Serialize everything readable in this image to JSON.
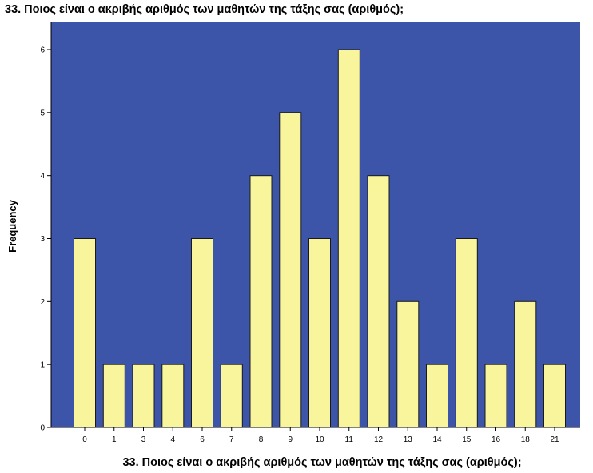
{
  "chart_data": {
    "type": "bar",
    "title": "33. Ποιος είναι ο ακριβής αριθμός των μαθητών της τάξης σας (αριθμός);",
    "xlabel": "33. Ποιος είναι ο ακριβής αριθμός των μαθητών της τάξης σας (αριθμός);",
    "ylabel": "Frequency",
    "categories": [
      "0",
      "1",
      "3",
      "4",
      "6",
      "7",
      "8",
      "9",
      "10",
      "11",
      "12",
      "13",
      "14",
      "15",
      "16",
      "18",
      "21"
    ],
    "values": [
      3,
      1,
      1,
      1,
      3,
      1,
      4,
      5,
      3,
      6,
      4,
      2,
      1,
      3,
      1,
      2,
      1
    ],
    "ylim": [
      0,
      6
    ],
    "yticks": [
      "0",
      "1",
      "2",
      "3",
      "4",
      "5",
      "6"
    ],
    "grid": false,
    "legend": "none",
    "colors": {
      "plot_background": "#3d55a9",
      "bar_fill": "#f8f59d",
      "bar_stroke": "#1a1a1a"
    }
  }
}
